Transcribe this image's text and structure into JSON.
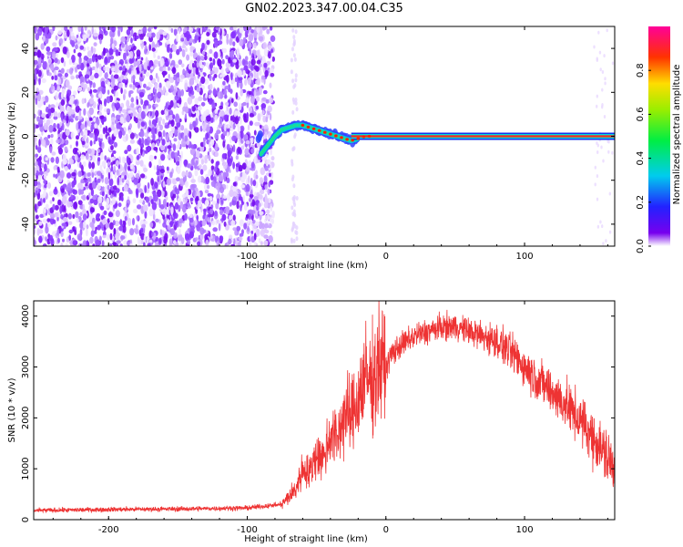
{
  "title": "GN02.2023.347.00.04.C35",
  "chart_data": [
    {
      "type": "heatmap",
      "xlabel": "Height of straight line (km)",
      "ylabel": "Frequency (Hz)",
      "xlim": [
        -254,
        165
      ],
      "ylim": [
        -50,
        50
      ],
      "xticks": [
        -200,
        -100,
        0,
        100
      ],
      "yticks": [
        40,
        20,
        0,
        -20,
        -40
      ],
      "noise_region_x": [
        -254,
        -85
      ],
      "signal_track": {
        "x": [
          -90,
          -85,
          -80,
          -75,
          -70,
          -65,
          -60,
          -55,
          -50,
          -45,
          -40,
          -35,
          -30,
          -25,
          -20,
          -15,
          -10,
          -5,
          0,
          20,
          60,
          100,
          140,
          165
        ],
        "freq": [
          -8,
          -4,
          0,
          3,
          4,
          5,
          5,
          4,
          3,
          2,
          1,
          0,
          -1,
          -2,
          -1,
          0,
          0,
          0,
          0,
          0,
          0,
          0,
          0,
          0
        ]
      },
      "colorbar": {
        "label": "Normalized spectral amplitude",
        "range": [
          0.0,
          1.0
        ],
        "ticks": [
          0.0,
          0.2,
          0.4,
          0.6,
          0.8
        ]
      }
    },
    {
      "type": "line",
      "xlabel": "Height of straight line (km)",
      "ylabel": "SNR (10 * v/v)",
      "xlim": [
        -254,
        165
      ],
      "ylim": [
        0,
        4300
      ],
      "xticks": [
        -200,
        -100,
        0,
        100
      ],
      "yticks": [
        0,
        1000,
        2000,
        3000,
        4000
      ],
      "series": [
        {
          "name": "SNR",
          "color": "#ee3333",
          "x": [
            -254,
            -200,
            -150,
            -100,
            -75,
            -65,
            -60,
            -55,
            -50,
            -45,
            -40,
            -35,
            -30,
            -25,
            -20,
            -15,
            -10,
            -5,
            0,
            5,
            10,
            15,
            20,
            30,
            40,
            50,
            60,
            70,
            80,
            90,
            100,
            110,
            120,
            130,
            140,
            150,
            160,
            165
          ],
          "values": [
            180,
            200,
            210,
            230,
            300,
            600,
            1000,
            900,
            1300,
            1200,
            1700,
            1600,
            2100,
            2000,
            2400,
            2800,
            2700,
            3100,
            3000,
            3300,
            3400,
            3500,
            3600,
            3700,
            3780,
            3800,
            3700,
            3600,
            3500,
            3300,
            3000,
            2750,
            2500,
            2250,
            1950,
            1600,
            1200,
            1000
          ]
        }
      ]
    }
  ]
}
